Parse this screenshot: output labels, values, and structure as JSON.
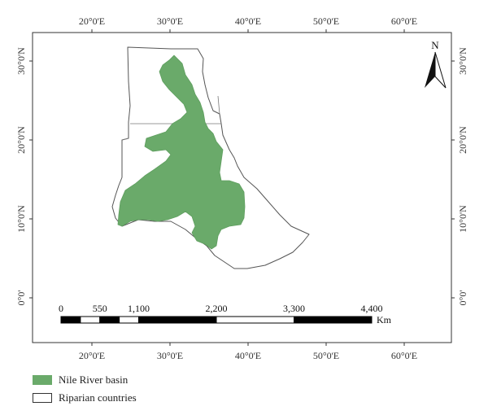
{
  "map": {
    "lon_labels": [
      "20°0'E",
      "30°0'E",
      "40°0'E",
      "50°0'E",
      "60°0'E"
    ],
    "lat_labels": [
      "30°0'N",
      "20°0'N",
      "10°0'N",
      "0°0'"
    ],
    "north_label": "N",
    "colors": {
      "basin": "#6aaa6a",
      "countries_outline": "#555555",
      "frame": "#333333"
    }
  },
  "scale_bar": {
    "labels": [
      "0",
      "550",
      "1,100",
      "2,200",
      "3,300",
      "4,400"
    ],
    "values": [
      0,
      550,
      1100,
      2200,
      3300,
      4400
    ],
    "unit": "Km"
  },
  "legend": {
    "items": [
      {
        "label": "Nile River basin",
        "swatch": "basin"
      },
      {
        "label": "Riparian countries",
        "swatch": "country"
      }
    ]
  }
}
